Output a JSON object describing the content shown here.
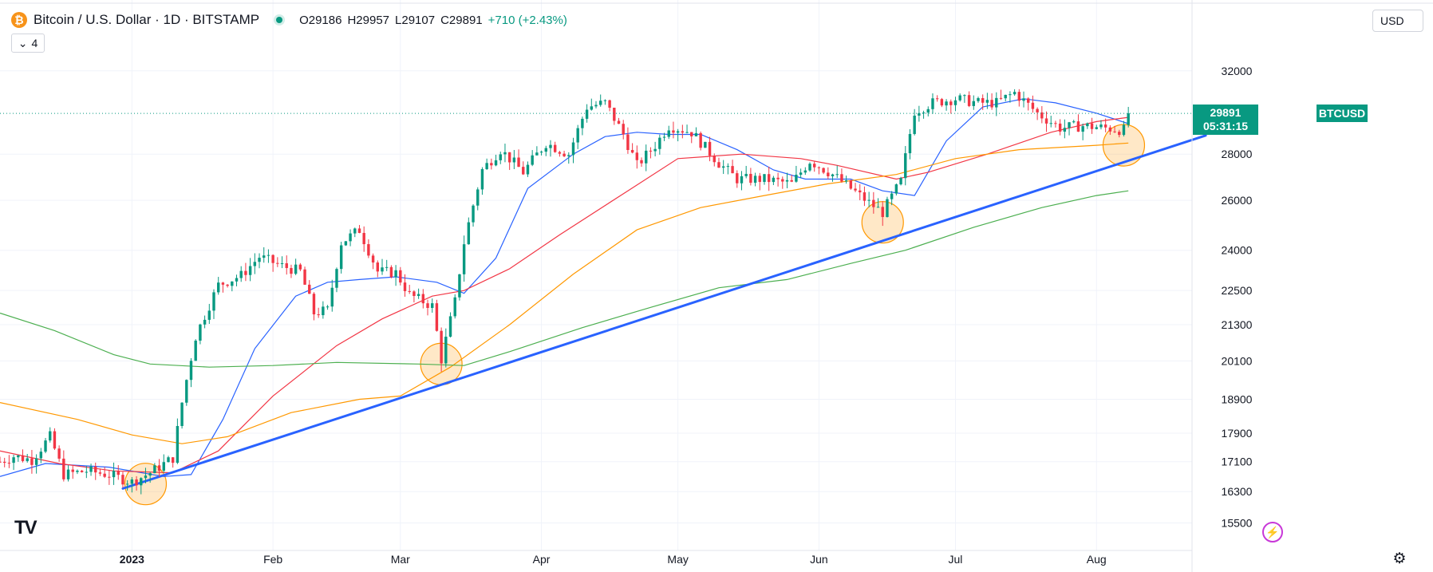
{
  "header": {
    "symbol_title": "Bitcoin / U.S. Dollar · 1D · BITSTAMP",
    "ohlc": {
      "o": "O29186",
      "h": "H29957",
      "l": "L29107",
      "c": "C29891",
      "change": "+710 (+2.43%)"
    },
    "indicators_count": "4",
    "currency": "USD"
  },
  "icons": {
    "symbol": "bitcoin-icon",
    "live": "live-status-icon",
    "collapse": "chevron-down-icon",
    "brand": "tradingview-logo",
    "flash": "lightning-icon",
    "settings": "gear-icon"
  },
  "last_price": {
    "symbol": "BTCUSD",
    "price": "29891",
    "countdown": "05:31:15"
  },
  "chart_data": {
    "type": "candlestick",
    "y_scale": "log",
    "ylim": [
      15100,
      33200
    ],
    "y_ticks": [
      15500,
      16300,
      17100,
      17900,
      18900,
      20100,
      21300,
      22500,
      24000,
      26000,
      28000,
      29891,
      32000
    ],
    "x_range": [
      "2022-12-03",
      "2023-08-22"
    ],
    "x_ticks": [
      {
        "date": "2023-01-01",
        "label": "2023",
        "bold": true
      },
      {
        "date": "2023-02-01",
        "label": "Feb"
      },
      {
        "date": "2023-03-01",
        "label": "Mar"
      },
      {
        "date": "2023-04-01",
        "label": "Apr"
      },
      {
        "date": "2023-05-01",
        "label": "May"
      },
      {
        "date": "2023-06-01",
        "label": "Jun"
      },
      {
        "date": "2023-07-01",
        "label": "Jul"
      },
      {
        "date": "2023-08-01",
        "label": "Aug"
      }
    ],
    "close_path": [
      [
        "2022-12-03",
        17100
      ],
      [
        "2022-12-06",
        17250
      ],
      [
        "2022-12-10",
        17150
      ],
      [
        "2022-12-14",
        17800
      ],
      [
        "2022-12-17",
        16750
      ],
      [
        "2022-12-22",
        16850
      ],
      [
        "2022-12-27",
        16750
      ],
      [
        "2023-01-01",
        16550
      ],
      [
        "2023-01-05",
        16800
      ],
      [
        "2023-01-10",
        17200
      ],
      [
        "2023-01-12",
        18800
      ],
      [
        "2023-01-15",
        20900
      ],
      [
        "2023-01-20",
        22700
      ],
      [
        "2023-01-25",
        23050
      ],
      [
        "2023-01-29",
        23750
      ],
      [
        "2023-02-03",
        23400
      ],
      [
        "2023-02-07",
        23200
      ],
      [
        "2023-02-10",
        21700
      ],
      [
        "2023-02-13",
        21800
      ],
      [
        "2023-02-16",
        24300
      ],
      [
        "2023-02-20",
        24800
      ],
      [
        "2023-02-24",
        23200
      ],
      [
        "2023-02-28",
        23150
      ],
      [
        "2023-03-03",
        22350
      ],
      [
        "2023-03-08",
        21950
      ],
      [
        "2023-03-10",
        20150
      ],
      [
        "2023-03-13",
        22100
      ],
      [
        "2023-03-15",
        24300
      ],
      [
        "2023-03-19",
        27300
      ],
      [
        "2023-03-23",
        28200
      ],
      [
        "2023-03-28",
        27200
      ],
      [
        "2023-04-02",
        28500
      ],
      [
        "2023-04-07",
        28000
      ],
      [
        "2023-04-11",
        30200
      ],
      [
        "2023-04-15",
        30400
      ],
      [
        "2023-04-19",
        28900
      ],
      [
        "2023-04-22",
        27500
      ],
      [
        "2023-04-26",
        28400
      ],
      [
        "2023-04-29",
        29300
      ],
      [
        "2023-05-04",
        29000
      ],
      [
        "2023-05-10",
        27600
      ],
      [
        "2023-05-14",
        26900
      ],
      [
        "2023-05-20",
        26900
      ],
      [
        "2023-05-26",
        26700
      ],
      [
        "2023-05-30",
        27700
      ],
      [
        "2023-06-04",
        27100
      ],
      [
        "2023-06-08",
        26500
      ],
      [
        "2023-06-12",
        25900
      ],
      [
        "2023-06-15",
        25500
      ],
      [
        "2023-06-19",
        26800
      ],
      [
        "2023-06-22",
        30000
      ],
      [
        "2023-06-26",
        30400
      ],
      [
        "2023-07-01",
        30600
      ],
      [
        "2023-07-06",
        30400
      ],
      [
        "2023-07-10",
        30400
      ],
      [
        "2023-07-14",
        30900
      ],
      [
        "2023-07-19",
        29900
      ],
      [
        "2023-07-24",
        29200
      ],
      [
        "2023-07-29",
        29300
      ],
      [
        "2023-08-03",
        29200
      ],
      [
        "2023-08-07",
        29100
      ],
      [
        "2023-08-08",
        29891
      ]
    ],
    "candle_volatility": 0.018,
    "series": [
      {
        "color": "#2962ff",
        "width": 1.2,
        "points": [
          [
            "2022-12-03",
            16700
          ],
          [
            "2022-12-13",
            17050
          ],
          [
            "2022-12-27",
            16950
          ],
          [
            "2023-01-08",
            16700
          ],
          [
            "2023-01-14",
            16750
          ],
          [
            "2023-01-21",
            18300
          ],
          [
            "2023-01-28",
            20500
          ],
          [
            "2023-02-06",
            22300
          ],
          [
            "2023-02-13",
            22800
          ],
          [
            "2023-02-20",
            22900
          ],
          [
            "2023-02-28",
            23000
          ],
          [
            "2023-03-09",
            22800
          ],
          [
            "2023-03-15",
            22400
          ],
          [
            "2023-03-22",
            23700
          ],
          [
            "2023-03-29",
            26500
          ],
          [
            "2023-04-08",
            28000
          ],
          [
            "2023-04-15",
            28800
          ],
          [
            "2023-04-22",
            29000
          ],
          [
            "2023-04-29",
            28900
          ],
          [
            "2023-05-06",
            28900
          ],
          [
            "2023-05-14",
            28200
          ],
          [
            "2023-05-22",
            27300
          ],
          [
            "2023-05-29",
            26900
          ],
          [
            "2023-06-08",
            26900
          ],
          [
            "2023-06-15",
            26400
          ],
          [
            "2023-06-22",
            26200
          ],
          [
            "2023-06-29",
            28600
          ],
          [
            "2023-07-07",
            30200
          ],
          [
            "2023-07-16",
            30600
          ],
          [
            "2023-07-23",
            30400
          ],
          [
            "2023-08-01",
            29900
          ],
          [
            "2023-08-08",
            29400
          ]
        ]
      },
      {
        "color": "#f23645",
        "width": 1.2,
        "points": [
          [
            "2022-12-03",
            17400
          ],
          [
            "2022-12-16",
            17050
          ],
          [
            "2022-12-28",
            16850
          ],
          [
            "2023-01-10",
            16800
          ],
          [
            "2023-01-20",
            17400
          ],
          [
            "2023-02-01",
            19000
          ],
          [
            "2023-02-15",
            20600
          ],
          [
            "2023-02-25",
            21500
          ],
          [
            "2023-03-08",
            22300
          ],
          [
            "2023-03-15",
            22500
          ],
          [
            "2023-03-25",
            23300
          ],
          [
            "2023-04-05",
            24600
          ],
          [
            "2023-04-20",
            26400
          ],
          [
            "2023-05-01",
            27800
          ],
          [
            "2023-05-15",
            28000
          ],
          [
            "2023-05-28",
            27800
          ],
          [
            "2023-06-05",
            27500
          ],
          [
            "2023-06-18",
            26900
          ],
          [
            "2023-06-25",
            27200
          ],
          [
            "2023-07-08",
            28000
          ],
          [
            "2023-07-22",
            29000
          ],
          [
            "2023-08-01",
            29500
          ],
          [
            "2023-08-08",
            29700
          ]
        ]
      },
      {
        "color": "#ff9800",
        "width": 1.2,
        "points": [
          [
            "2022-12-03",
            18800
          ],
          [
            "2022-12-20",
            18300
          ],
          [
            "2023-01-01",
            17850
          ],
          [
            "2023-01-12",
            17600
          ],
          [
            "2023-01-22",
            17800
          ],
          [
            "2023-02-05",
            18500
          ],
          [
            "2023-02-20",
            18900
          ],
          [
            "2023-03-01",
            19000
          ],
          [
            "2023-03-12",
            19900
          ],
          [
            "2023-03-25",
            21300
          ],
          [
            "2023-04-08",
            23100
          ],
          [
            "2023-04-22",
            24800
          ],
          [
            "2023-05-06",
            25700
          ],
          [
            "2023-05-20",
            26200
          ],
          [
            "2023-06-03",
            26700
          ],
          [
            "2023-06-18",
            27100
          ],
          [
            "2023-07-01",
            27800
          ],
          [
            "2023-07-15",
            28200
          ],
          [
            "2023-08-01",
            28400
          ],
          [
            "2023-08-08",
            28500
          ]
        ]
      },
      {
        "color": "#4caf50",
        "width": 1.2,
        "points": [
          [
            "2022-12-03",
            21700
          ],
          [
            "2022-12-15",
            21100
          ],
          [
            "2022-12-28",
            20300
          ],
          [
            "2023-01-05",
            20000
          ],
          [
            "2023-01-18",
            19900
          ],
          [
            "2023-02-01",
            19950
          ],
          [
            "2023-02-15",
            20050
          ],
          [
            "2023-03-05",
            20000
          ],
          [
            "2023-03-15",
            19950
          ],
          [
            "2023-03-25",
            20400
          ],
          [
            "2023-04-10",
            21200
          ],
          [
            "2023-04-25",
            21900
          ],
          [
            "2023-05-10",
            22600
          ],
          [
            "2023-05-25",
            22900
          ],
          [
            "2023-06-08",
            23500
          ],
          [
            "2023-06-20",
            24000
          ],
          [
            "2023-07-05",
            24900
          ],
          [
            "2023-07-20",
            25700
          ],
          [
            "2023-08-01",
            26200
          ],
          [
            "2023-08-08",
            26400
          ]
        ]
      }
    ],
    "trendline": {
      "color": "#2962ff",
      "width": 3,
      "from": [
        "2022-12-30",
        16380
      ],
      "to": [
        "2023-08-25",
        28850
      ]
    },
    "highlights": [
      {
        "date": "2023-01-04",
        "value": 16500,
        "color": "#ff9800"
      },
      {
        "date": "2023-03-10",
        "value": 20000,
        "color": "#ff9800"
      },
      {
        "date": "2023-06-15",
        "value": 25100,
        "color": "#ff9800"
      },
      {
        "date": "2023-08-07",
        "value": 28400,
        "color": "#ff9800"
      }
    ],
    "colors": {
      "up": "#089981",
      "down": "#f23645",
      "grid": "#f0f3fa",
      "text": "#131722"
    }
  }
}
